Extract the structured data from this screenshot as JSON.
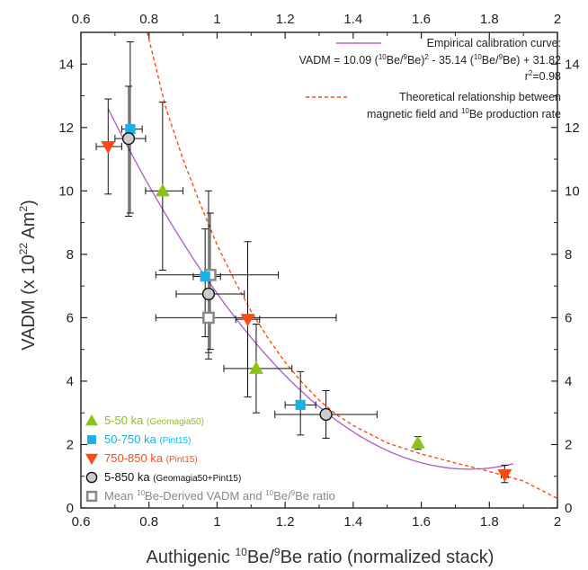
{
  "chart_data": {
    "type": "scatter",
    "xlabel": {
      "pre": "Authigenic ",
      "sup1": "10",
      "mid": "Be/",
      "sup2": "9",
      "post": "Be ratio (normalized stack)"
    },
    "ylabel": {
      "pre": "VADM  (x 10",
      "sup": "22",
      "post": " Am",
      "sup2": "2",
      "end": ")"
    },
    "xlim": [
      0.6,
      2.0
    ],
    "ylim": [
      0,
      15
    ],
    "xticks": [
      0.6,
      0.8,
      1.0,
      1.2,
      1.4,
      1.6,
      1.8,
      2.0
    ],
    "xtick_labels": [
      "0.6",
      "0.8",
      "1",
      "1.2",
      "1.4",
      "1.6",
      "1.8",
      "2"
    ],
    "yticks": [
      0,
      2,
      4,
      6,
      8,
      10,
      12,
      14
    ],
    "ytick_labels": [
      "0",
      "2",
      "4",
      "6",
      "8",
      "10",
      "12",
      "14"
    ],
    "curves": [
      {
        "name": "Empirical calibration curve",
        "style": "solid",
        "color": "#b065c8",
        "equation": {
          "a": 10.09,
          "b": -35.14,
          "c": 31.82
        },
        "x_range": [
          0.68,
          1.87
        ]
      },
      {
        "name": "Theoretical relationship",
        "style": "dashed",
        "color": "#ff4a14",
        "points": [
          [
            0.795,
            15.0
          ],
          [
            0.85,
            12.6
          ],
          [
            0.9,
            11.0
          ],
          [
            0.95,
            9.6
          ],
          [
            1.0,
            8.3
          ],
          [
            1.05,
            7.2
          ],
          [
            1.1,
            6.2
          ],
          [
            1.15,
            5.35
          ],
          [
            1.2,
            4.6
          ],
          [
            1.25,
            3.95
          ],
          [
            1.3,
            3.4
          ],
          [
            1.35,
            2.95
          ],
          [
            1.4,
            2.6
          ],
          [
            1.5,
            2.05
          ],
          [
            1.6,
            1.7
          ],
          [
            1.7,
            1.42
          ],
          [
            1.8,
            1.15
          ],
          [
            1.9,
            0.85
          ],
          [
            2.0,
            0.3
          ]
        ]
      }
    ],
    "series": [
      {
        "name": "5-50 ka",
        "source": "(Geomagia50)",
        "marker": "triangle-up",
        "color": "#8cc21a",
        "text_color": "#8cc21a",
        "points": [
          {
            "x": 0.84,
            "y": 10.0,
            "xerr": [
              0.79,
              0.9
            ],
            "yerr": [
              7.5,
              12.8
            ]
          },
          {
            "x": 1.115,
            "y": 4.4,
            "xerr": [
              1.02,
              1.22
            ],
            "yerr": [
              3.0,
              5.8
            ]
          },
          {
            "x": 1.59,
            "y": 2.05,
            "xerr": [
              1.585,
              1.595
            ],
            "yerr": [
              1.85,
              2.25
            ]
          }
        ]
      },
      {
        "name": "50-750 ka",
        "source": "(Pint15)",
        "marker": "square",
        "color": "#18b0e8",
        "text_color": "#18b0e8",
        "points": [
          {
            "x": 0.745,
            "y": 11.95,
            "xerr": [
              0.72,
              0.78
            ],
            "yerr": [
              9.3,
              14.7
            ]
          },
          {
            "x": 0.965,
            "y": 7.3,
            "xerr": [
              0.93,
              1.01
            ],
            "yerr": [
              5.4,
              8.8
            ]
          },
          {
            "x": 1.245,
            "y": 3.25,
            "xerr": [
              1.2,
              1.29
            ],
            "yerr": [
              2.3,
              4.3
            ]
          }
        ]
      },
      {
        "name": "750-850 ka",
        "source": "(Pint15)",
        "marker": "triangle-down",
        "color": "#ff4a14",
        "text_color": "#ff4a14",
        "points": [
          {
            "x": 0.68,
            "y": 11.4,
            "xerr": [
              0.645,
              0.72
            ],
            "yerr": [
              9.9,
              12.9
            ]
          },
          {
            "x": 1.09,
            "y": 5.95,
            "xerr": [
              1.055,
              1.125
            ],
            "yerr": [
              3.5,
              8.4
            ]
          },
          {
            "x": 1.845,
            "y": 1.05,
            "xerr": [
              1.835,
              1.855
            ],
            "yerr": [
              0.8,
              1.35
            ]
          }
        ]
      },
      {
        "name": "5-850 ka",
        "source": "(Geomagia50+Pint15)",
        "marker": "circle",
        "color": "#cccccc",
        "text_color": "#111111",
        "points": [
          {
            "x": 0.74,
            "y": 11.65,
            "xerr": [
              0.7,
              0.79
            ],
            "yerr": [
              9.2,
              13.3
            ]
          },
          {
            "x": 0.975,
            "y": 6.75,
            "xerr": [
              0.88,
              1.08
            ],
            "yerr": [
              4.7,
              10.0
            ]
          },
          {
            "x": 1.32,
            "y": 2.95,
            "xerr": [
              1.17,
              1.47
            ],
            "yerr": [
              2.2,
              3.7
            ]
          }
        ]
      },
      {
        "name": "Mean 10Be-Derived VADM and 10Be/9Be ratio",
        "marker": "square-hollow",
        "color": "#888888",
        "text_color": "#888888",
        "points": [
          {
            "x": 0.98,
            "y": 7.35,
            "xerr": [
              0.82,
              1.18
            ],
            "yerr": [
              5.0,
              9.3
            ]
          },
          {
            "x": 0.975,
            "y": 6.0,
            "xerr": [
              0.82,
              1.35
            ],
            "yerr": [
              4.9,
              7.4
            ]
          }
        ]
      }
    ],
    "annotations": {
      "empirical_title": "Empirical calibration curve:",
      "equation_a": "VADM = 10.09 (",
      "equation_b": "Be/",
      "equation_c": "Be)",
      "equation_d": " - 35.14 (",
      "equation_e": "Be/",
      "equation_f": "Be) + 31.82",
      "sup10": "10",
      "sup9": "9",
      "sup2": "2",
      "r2_pre": "r",
      "r2_post": "=0.98",
      "theoretical_line1": "Theoretical relationship between",
      "theoretical_line2_pre": "magnetic field and ",
      "theoretical_line2_post": "Be production rate"
    },
    "legend": {
      "placement": "bottom-left",
      "mean_label_pre": "Mean ",
      "mean_label_mid": "Be-Derived VADM and ",
      "mean_label_mid2": "Be/",
      "mean_label_post": "Be ratio"
    }
  }
}
